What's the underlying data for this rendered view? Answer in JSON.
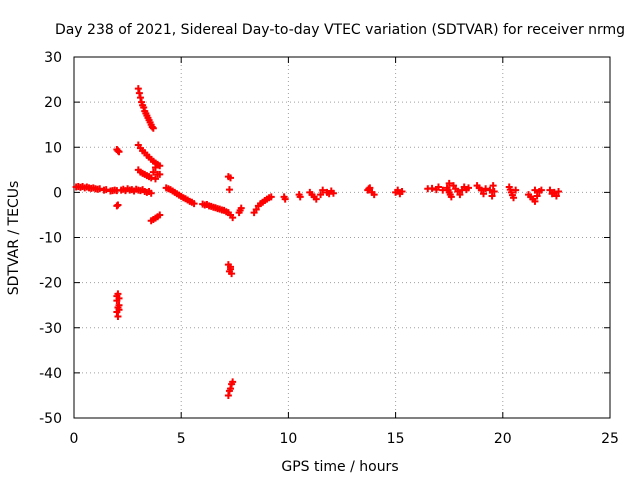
{
  "chart_data": {
    "type": "scatter",
    "title": "Day 238 of 2021, Sidereal Day-to-day VTEC variation (SDTVAR) for receiver nrmg",
    "xlabel": "GPS time / hours",
    "ylabel": "SDTVAR / TECUs",
    "xlim": [
      0,
      25
    ],
    "ylim": [
      -50,
      30
    ],
    "x_ticks": [
      "0",
      "5",
      "10",
      "15",
      "20",
      "25"
    ],
    "y_ticks": [
      "30",
      "20",
      "10",
      "0",
      "-10",
      "-20",
      "-30",
      "-40",
      "-50"
    ],
    "grid": true,
    "marker": "plus",
    "color": "#ff0000",
    "series": [
      {
        "name": "SDTVAR",
        "points": [
          [
            0.1,
            1.2
          ],
          [
            0.2,
            1.3
          ],
          [
            0.3,
            1.1
          ],
          [
            0.4,
            1.3
          ],
          [
            0.5,
            1.0
          ],
          [
            0.6,
            1.2
          ],
          [
            0.7,
            1.0
          ],
          [
            0.8,
            0.9
          ],
          [
            0.9,
            1.0
          ],
          [
            1.0,
            0.8
          ],
          [
            1.1,
            0.7
          ],
          [
            1.2,
            0.8
          ],
          [
            1.4,
            0.5
          ],
          [
            1.5,
            0.6
          ],
          [
            1.7,
            0.3
          ],
          [
            1.8,
            0.4
          ],
          [
            1.9,
            0.5
          ],
          [
            2.0,
            0.4
          ],
          [
            2.0,
            9.5
          ],
          [
            2.05,
            9.2
          ],
          [
            2.1,
            9.0
          ],
          [
            2.0,
            -3.0
          ],
          [
            2.05,
            -2.8
          ],
          [
            2.0,
            -23.0
          ],
          [
            2.05,
            -22.5
          ],
          [
            2.1,
            -23.5
          ],
          [
            2.0,
            -24.0
          ],
          [
            2.05,
            -25.5
          ],
          [
            2.1,
            -26.0
          ],
          [
            2.0,
            -26.5
          ],
          [
            2.05,
            -27.5
          ],
          [
            2.1,
            -25.0
          ],
          [
            2.2,
            0.5
          ],
          [
            2.3,
            0.7
          ],
          [
            2.4,
            0.4
          ],
          [
            2.5,
            0.8
          ],
          [
            2.6,
            0.5
          ],
          [
            2.7,
            0.6
          ],
          [
            2.8,
            0.3
          ],
          [
            2.9,
            0.7
          ],
          [
            3.0,
            0.5
          ],
          [
            3.1,
            0.4
          ],
          [
            3.2,
            0.6
          ],
          [
            3.3,
            0.2
          ],
          [
            3.4,
            0.0
          ],
          [
            3.5,
            0.2
          ],
          [
            3.6,
            -0.2
          ],
          [
            3.0,
            23.0
          ],
          [
            3.05,
            22.0
          ],
          [
            3.1,
            21.0
          ],
          [
            3.15,
            20.0
          ],
          [
            3.2,
            19.3
          ],
          [
            3.25,
            18.8
          ],
          [
            3.3,
            18.0
          ],
          [
            3.35,
            17.5
          ],
          [
            3.4,
            17.0
          ],
          [
            3.45,
            16.5
          ],
          [
            3.5,
            16.0
          ],
          [
            3.55,
            15.5
          ],
          [
            3.6,
            15.0
          ],
          [
            3.65,
            14.5
          ],
          [
            3.7,
            14.2
          ],
          [
            3.0,
            10.5
          ],
          [
            3.1,
            9.8
          ],
          [
            3.2,
            9.2
          ],
          [
            3.3,
            8.8
          ],
          [
            3.4,
            8.2
          ],
          [
            3.5,
            7.8
          ],
          [
            3.6,
            7.3
          ],
          [
            3.7,
            6.9
          ],
          [
            3.8,
            6.5
          ],
          [
            3.9,
            6.2
          ],
          [
            4.0,
            5.9
          ],
          [
            3.0,
            5.0
          ],
          [
            3.1,
            4.5
          ],
          [
            3.2,
            4.2
          ],
          [
            3.3,
            4.0
          ],
          [
            3.4,
            3.7
          ],
          [
            3.5,
            3.5
          ],
          [
            3.6,
            3.2
          ],
          [
            3.6,
            -6.3
          ],
          [
            3.7,
            -6.0
          ],
          [
            3.8,
            -5.7
          ],
          [
            3.9,
            -5.4
          ],
          [
            4.0,
            -5.0
          ],
          [
            3.7,
            4.5
          ],
          [
            3.8,
            5.5
          ],
          [
            3.9,
            4.0
          ],
          [
            4.0,
            4.0
          ],
          [
            3.8,
            3.0
          ],
          [
            4.3,
            1.0
          ],
          [
            4.4,
            0.8
          ],
          [
            4.5,
            0.6
          ],
          [
            4.6,
            0.3
          ],
          [
            4.7,
            0.0
          ],
          [
            4.8,
            -0.3
          ],
          [
            4.9,
            -0.6
          ],
          [
            5.0,
            -0.9
          ],
          [
            5.1,
            -1.2
          ],
          [
            5.2,
            -1.4
          ],
          [
            5.3,
            -1.7
          ],
          [
            5.4,
            -2.0
          ],
          [
            5.5,
            -2.2
          ],
          [
            5.6,
            -2.5
          ],
          [
            6.0,
            -2.6
          ],
          [
            6.1,
            -2.8
          ],
          [
            6.2,
            -2.7
          ],
          [
            6.3,
            -3.0
          ],
          [
            6.4,
            -3.1
          ],
          [
            6.5,
            -3.3
          ],
          [
            6.6,
            -3.4
          ],
          [
            6.7,
            -3.6
          ],
          [
            6.8,
            -3.7
          ],
          [
            6.9,
            -3.9
          ],
          [
            7.0,
            -4.0
          ],
          [
            7.1,
            -4.3
          ],
          [
            7.2,
            -4.5
          ],
          [
            7.3,
            -5.0
          ],
          [
            7.4,
            -5.6
          ],
          [
            7.2,
            3.5
          ],
          [
            7.3,
            3.2
          ],
          [
            7.25,
            0.6
          ],
          [
            7.2,
            -16.0
          ],
          [
            7.3,
            -16.5
          ],
          [
            7.25,
            -17.5
          ],
          [
            7.35,
            -18.0
          ],
          [
            7.3,
            -17.0
          ],
          [
            7.2,
            -45.0
          ],
          [
            7.25,
            -44.0
          ],
          [
            7.3,
            -43.5
          ],
          [
            7.35,
            -42.5
          ],
          [
            7.4,
            -42.0
          ],
          [
            7.7,
            -4.5
          ],
          [
            7.75,
            -4.0
          ],
          [
            7.8,
            -3.5
          ],
          [
            8.4,
            -4.5
          ],
          [
            8.5,
            -3.8
          ],
          [
            8.6,
            -3.0
          ],
          [
            8.7,
            -2.5
          ],
          [
            8.8,
            -2.2
          ],
          [
            8.9,
            -1.8
          ],
          [
            9.0,
            -1.5
          ],
          [
            9.1,
            -1.2
          ],
          [
            9.2,
            -1.0
          ],
          [
            9.8,
            -1.0
          ],
          [
            9.85,
            -1.5
          ],
          [
            10.5,
            -0.5
          ],
          [
            10.55,
            -1.0
          ],
          [
            11.0,
            0.0
          ],
          [
            11.1,
            -0.5
          ],
          [
            11.2,
            -1.0
          ],
          [
            11.3,
            -1.5
          ],
          [
            11.5,
            -0.5
          ],
          [
            11.6,
            0.5
          ],
          [
            11.8,
            0.0
          ],
          [
            11.9,
            -0.3
          ],
          [
            12.0,
            0.3
          ],
          [
            12.1,
            -0.2
          ],
          [
            13.7,
            0.5
          ],
          [
            13.8,
            1.0
          ],
          [
            13.9,
            0.0
          ],
          [
            14.0,
            -0.5
          ],
          [
            13.75,
            0.8
          ],
          [
            15.0,
            0.0
          ],
          [
            15.1,
            0.5
          ],
          [
            15.2,
            -0.3
          ],
          [
            15.3,
            0.2
          ],
          [
            16.5,
            0.8
          ],
          [
            16.7,
            0.9
          ],
          [
            16.9,
            0.6
          ],
          [
            17.0,
            1.2
          ],
          [
            17.2,
            0.5
          ],
          [
            17.4,
            1.0
          ],
          [
            17.45,
            0.5
          ],
          [
            17.5,
            0.0
          ],
          [
            17.55,
            -0.5
          ],
          [
            17.6,
            -1.0
          ],
          [
            17.7,
            1.5
          ],
          [
            17.8,
            0.8
          ],
          [
            17.9,
            0.2
          ],
          [
            18.0,
            -0.5
          ],
          [
            18.1,
            0.5
          ],
          [
            18.2,
            1.2
          ],
          [
            18.3,
            0.6
          ],
          [
            18.4,
            1.0
          ],
          [
            17.5,
            2.0
          ],
          [
            18.8,
            1.5
          ],
          [
            18.9,
            1.0
          ],
          [
            19.0,
            0.5
          ],
          [
            19.1,
            -0.3
          ],
          [
            19.2,
            0.8
          ],
          [
            19.4,
            0.5
          ],
          [
            19.5,
            -0.8
          ],
          [
            19.6,
            0.2
          ],
          [
            19.55,
            1.5
          ],
          [
            20.3,
            1.2
          ],
          [
            20.35,
            0.6
          ],
          [
            20.4,
            0.0
          ],
          [
            20.45,
            -0.6
          ],
          [
            20.5,
            -1.2
          ],
          [
            20.6,
            0.5
          ],
          [
            21.2,
            -0.5
          ],
          [
            21.3,
            -1.0
          ],
          [
            21.4,
            -1.5
          ],
          [
            21.5,
            -2.0
          ],
          [
            21.6,
            -0.8
          ],
          [
            21.7,
            0.2
          ],
          [
            21.8,
            0.5
          ],
          [
            21.5,
            0.5
          ],
          [
            22.2,
            0.5
          ],
          [
            22.3,
            -0.3
          ],
          [
            22.4,
            0.0
          ],
          [
            22.5,
            -0.8
          ],
          [
            22.6,
            0.2
          ]
        ]
      }
    ]
  }
}
